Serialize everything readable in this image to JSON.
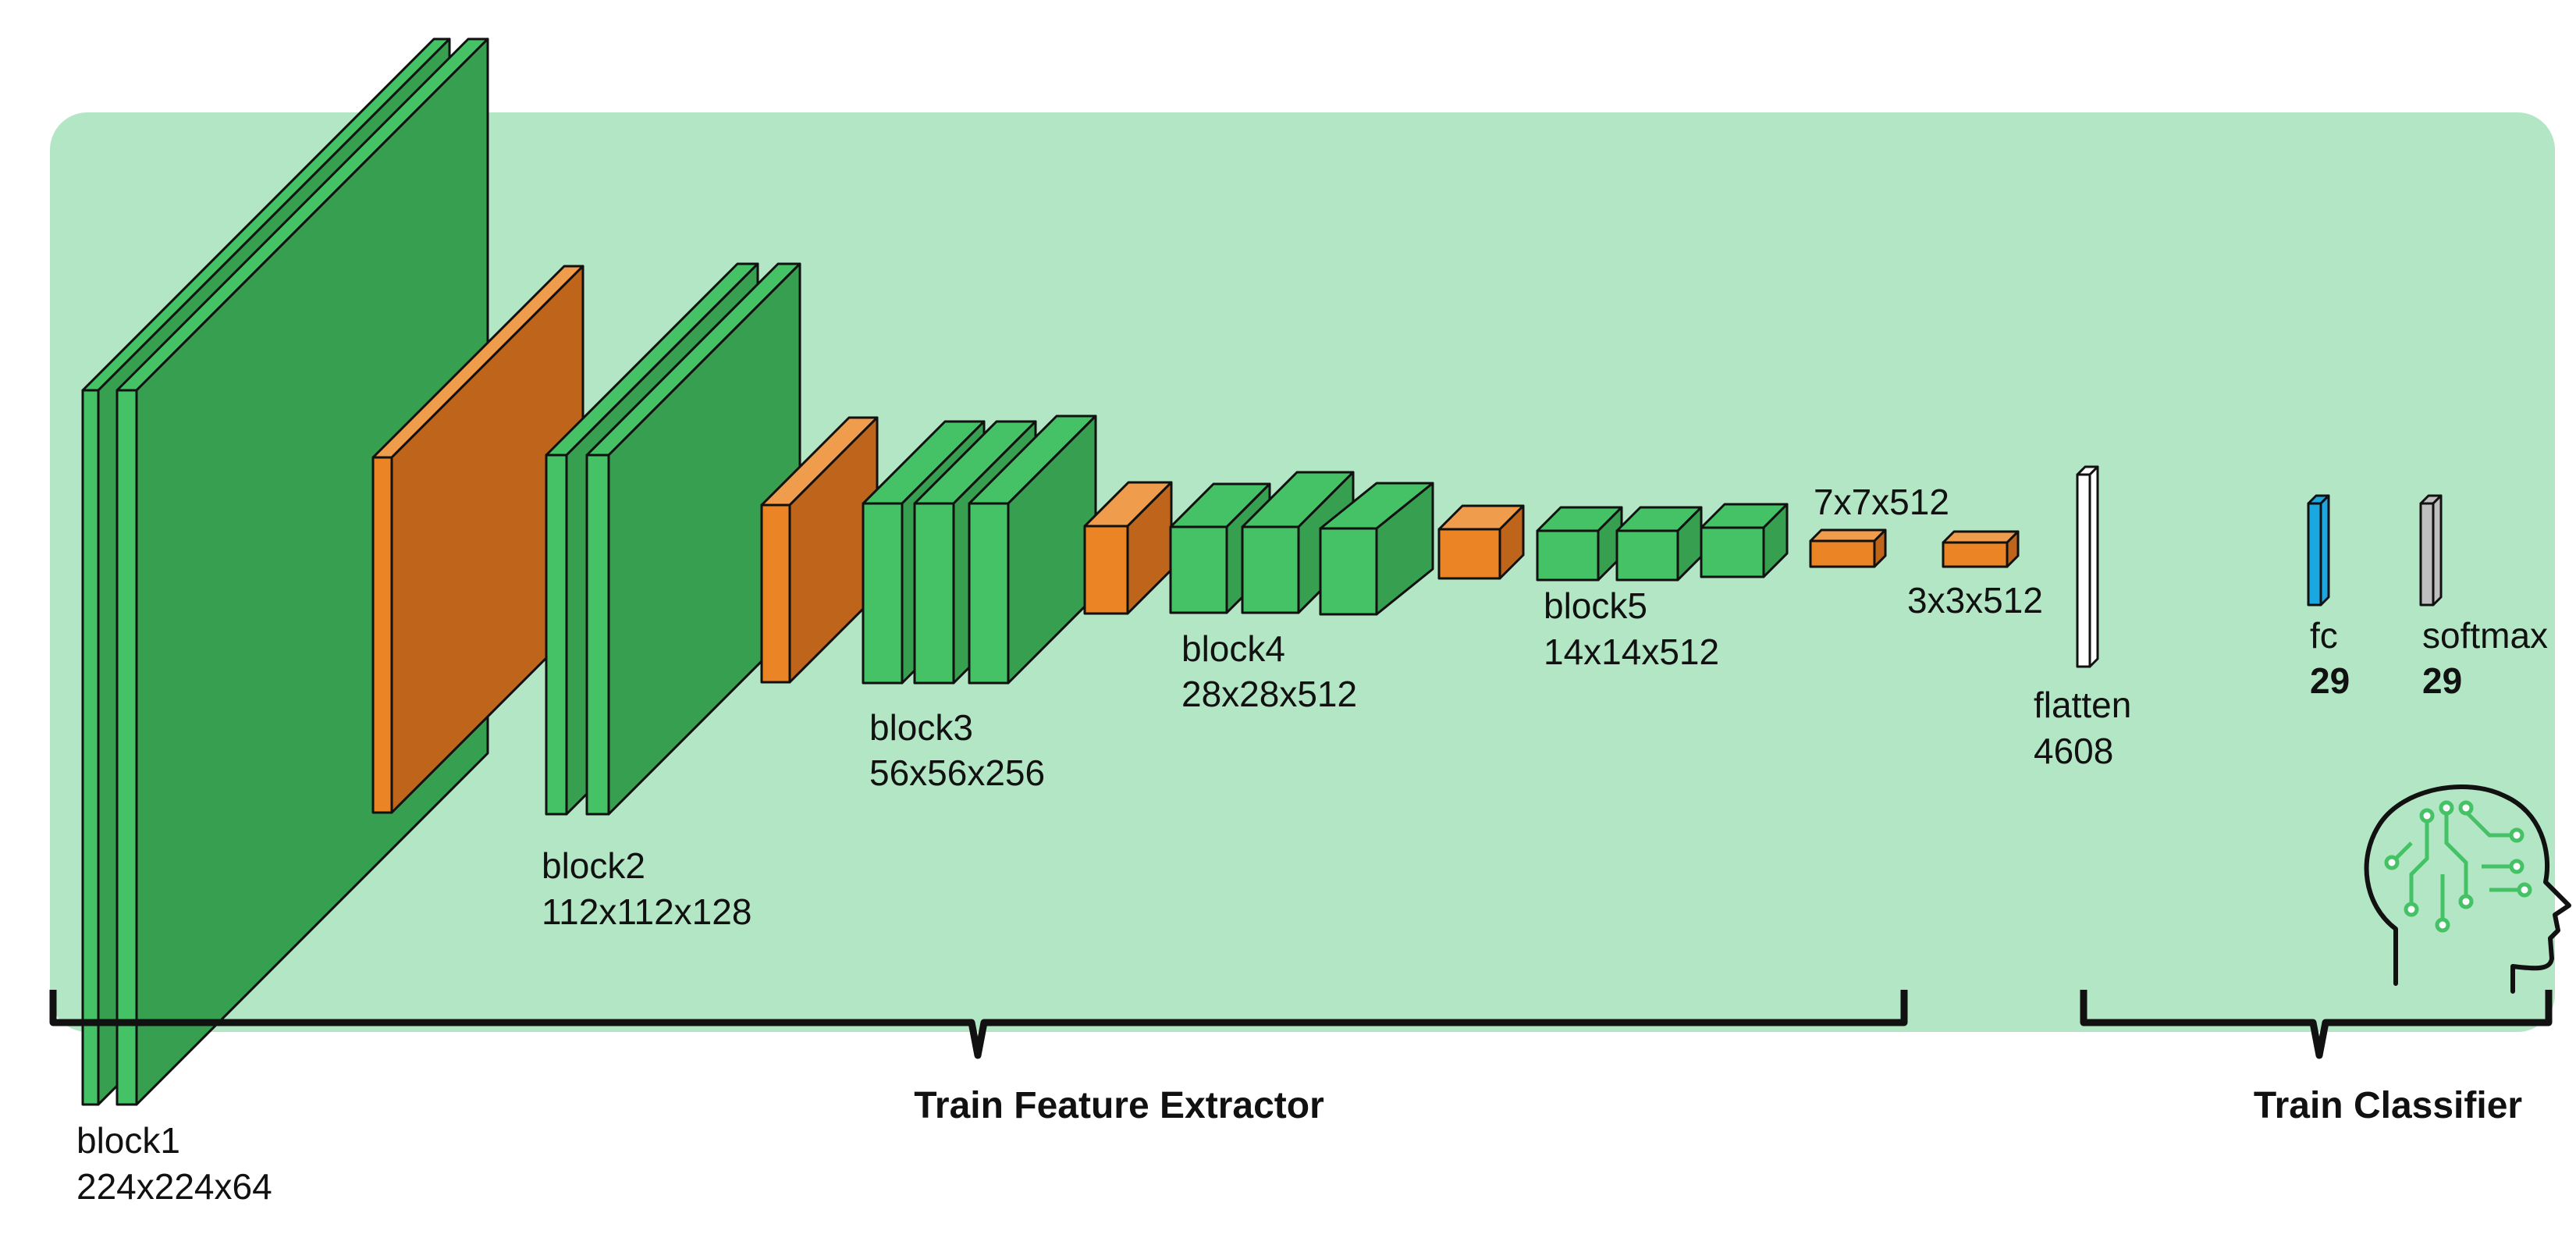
{
  "colors": {
    "panel_bg": "#b3e6c4",
    "conv_front": "#44c265",
    "conv_side": "#36a050",
    "pool_front": "#ea8424",
    "pool_side": "#bf651b",
    "pool_top": "#ef9c4c",
    "flatten": "#ffffff",
    "fc": "#1aa7e2",
    "softmax": "#bfbfbf",
    "brain_circuit": "#44c265",
    "outline": "#111111"
  },
  "blocks": [
    {
      "name": "block1",
      "dims": "224x224x64"
    },
    {
      "name": "block2",
      "dims": "112x112x128"
    },
    {
      "name": "block3",
      "dims": "56x56x256"
    },
    {
      "name": "block4",
      "dims": "28x28x512"
    },
    {
      "name": "block5",
      "dims": "14x14x512"
    }
  ],
  "pool_labels": {
    "pool5": "7x7x512",
    "pool6": "3x3x512"
  },
  "flatten": {
    "name": "flatten",
    "size": "4608"
  },
  "fc": {
    "name": "fc",
    "size": "29"
  },
  "softmax": {
    "name": "softmax",
    "size": "29"
  },
  "sections": {
    "feature_extractor": "Train Feature Extractor",
    "classifier": "Train Classifier"
  },
  "icons": {
    "brain": "head-circuit-icon"
  }
}
